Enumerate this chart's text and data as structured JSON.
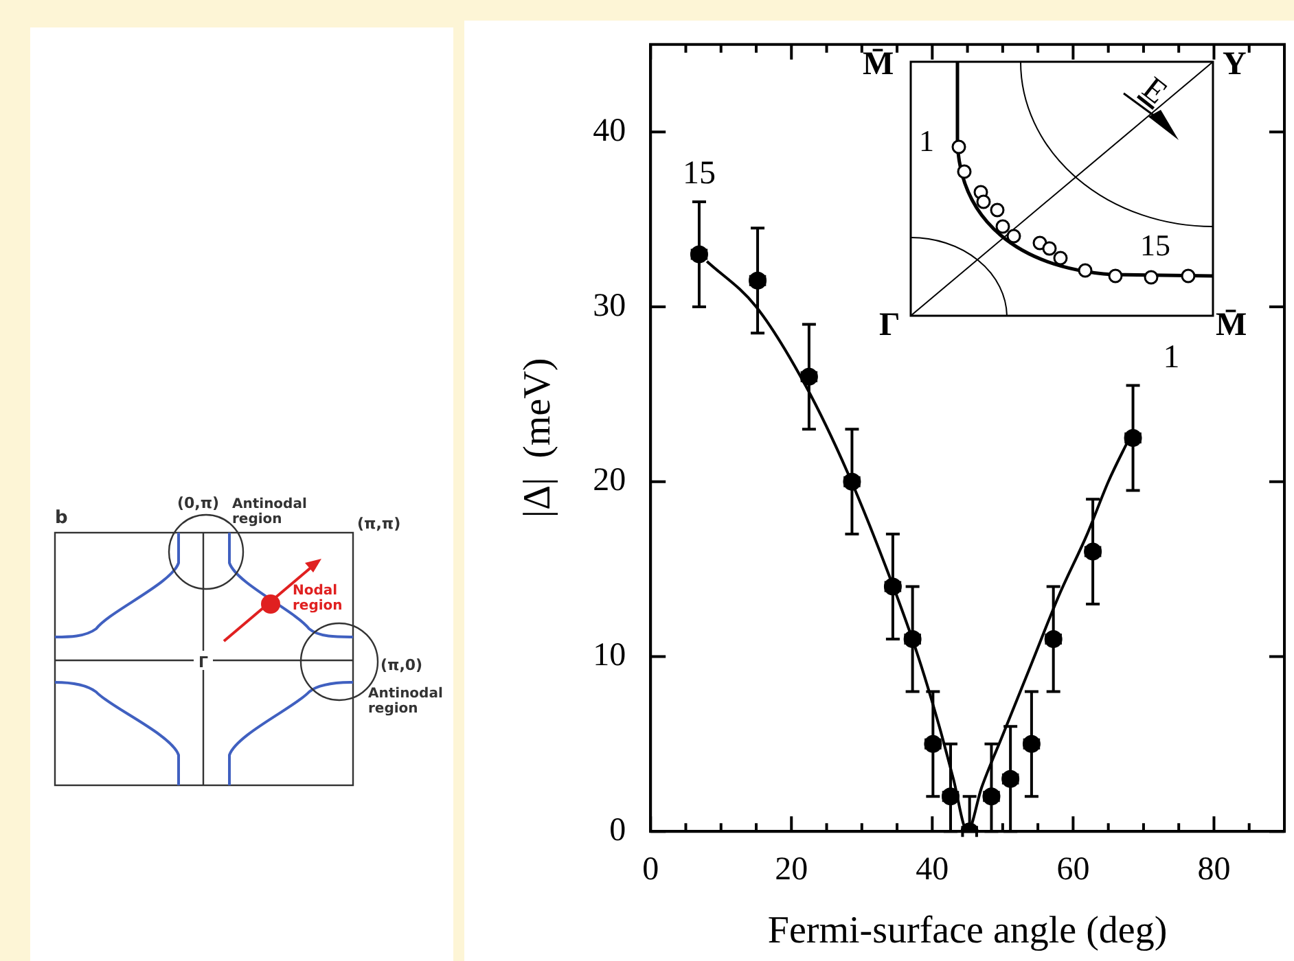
{
  "chart_data": {
    "type": "scatter",
    "xlabel": "Fermi-surface angle (deg)",
    "ylabel": "|Δ|  (meV)",
    "xlim": [
      0,
      90
    ],
    "ylim": [
      0,
      45
    ],
    "xticks": [
      0,
      {
        "value": 5,
        "label": null
      },
      {
        "value": 10,
        "label": null
      },
      {
        "value": 15,
        "label": null
      },
      20,
      {
        "value": 25,
        "label": null
      },
      {
        "value": 30,
        "label": null
      },
      {
        "value": 35,
        "label": null
      },
      40,
      {
        "value": 45,
        "label": null
      },
      {
        "value": 50,
        "label": null
      },
      {
        "value": 55,
        "label": null
      },
      60,
      {
        "value": 65,
        "label": null
      },
      {
        "value": 70,
        "label": null
      },
      {
        "value": 75,
        "label": null
      },
      80,
      {
        "value": 85,
        "label": null
      }
    ],
    "yticks": [
      0,
      10,
      20,
      30,
      40
    ],
    "marker": "circle",
    "series": [
      {
        "color": "#000000",
        "x": [
          6.9,
          15.2,
          22.5,
          28.6,
          34.4,
          37.2,
          40.1,
          42.6,
          45.3,
          48.4,
          51.1,
          54.1,
          57.2,
          62.8,
          68.5
        ],
        "values": [
          33,
          31.5,
          26,
          20,
          14,
          11,
          5,
          2,
          0,
          2,
          3,
          5,
          11,
          16,
          22.5
        ],
        "errors": [
          3,
          3,
          3,
          3,
          3,
          3,
          3,
          [
            0,
            5
          ],
          [
            0,
            2
          ],
          [
            0,
            5
          ],
          [
            0,
            6
          ],
          3,
          3,
          3,
          3
        ],
        "xerrors": [
          1,
          1,
          1,
          1,
          1,
          1,
          1,
          1,
          1,
          1,
          1,
          1,
          1,
          1,
          1
        ]
      },
      {
        "type": "line",
        "color": "#000000",
        "marker": "none",
        "x": [
          8,
          15,
          22,
          28,
          34,
          38,
          41,
          43,
          45,
          47,
          50,
          54,
          58,
          62,
          65,
          68
        ],
        "values": [
          32.6,
          30,
          25.5,
          20.5,
          14.5,
          10,
          6,
          3,
          0,
          2.5,
          5.5,
          9.5,
          13.5,
          17,
          20,
          22.5
        ]
      }
    ],
    "annotations": [
      "15",
      "1",
      "M̄",
      "Y",
      "Γ",
      "M̄",
      "1",
      "15",
      "E",
      "b",
      "(0,π)",
      "Antinodal region",
      "(π,π)",
      "Nodal region",
      "Γ",
      "(π,0)",
      "Antinodal region"
    ]
  }
}
